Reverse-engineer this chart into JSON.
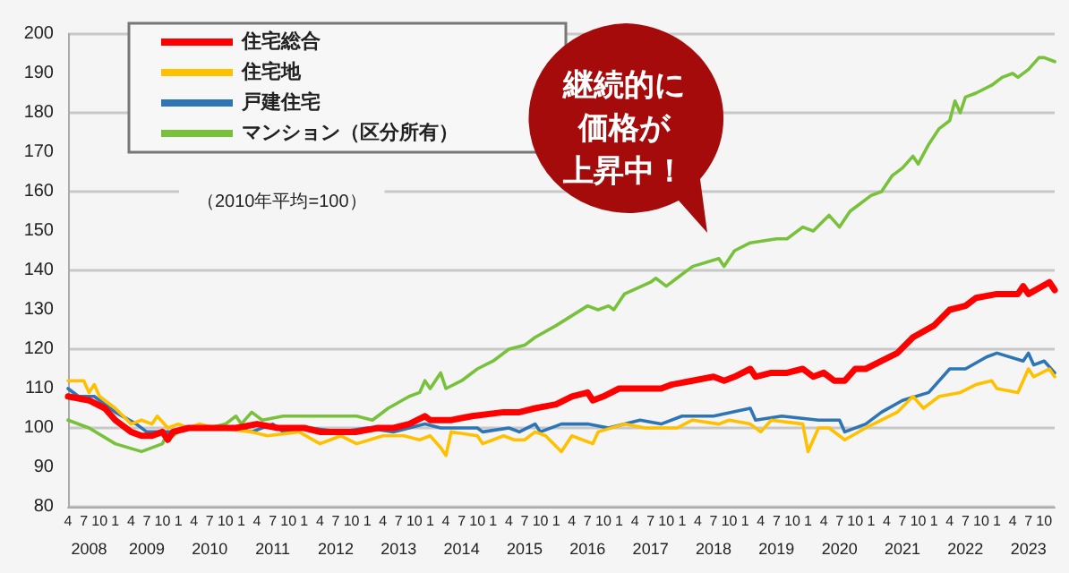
{
  "chart_data": {
    "type": "line",
    "subtitle": "（2010年平均=100）",
    "annotations": [
      "継続的に",
      "価格が",
      "上昇中！"
    ],
    "xlim": [
      "2008-04",
      "2023-12"
    ],
    "ylim": [
      80,
      200
    ],
    "yticks": [
      80,
      90,
      100,
      110,
      120,
      130,
      140,
      150,
      160,
      170,
      180,
      190,
      200
    ],
    "xticks": [
      {
        "value": "2008-04",
        "label": "4"
      },
      {
        "value": "2008-07",
        "label": "7"
      },
      {
        "value": "2008-10",
        "label": "10"
      },
      {
        "value": "2009-01",
        "label": "1"
      },
      {
        "value": "2009-04",
        "label": "4"
      },
      {
        "value": "2009-07",
        "label": "7"
      },
      {
        "value": "2009-10",
        "label": "10"
      },
      {
        "value": "2010-01",
        "label": "1"
      },
      {
        "value": "2010-04",
        "label": "4"
      },
      {
        "value": "2010-07",
        "label": "7"
      },
      {
        "value": "2010-10",
        "label": "10"
      },
      {
        "value": "2011-01",
        "label": "1"
      },
      {
        "value": "2011-04",
        "label": "4"
      },
      {
        "value": "2011-07",
        "label": "7"
      },
      {
        "value": "2011-10",
        "label": "10"
      },
      {
        "value": "2012-01",
        "label": "1"
      },
      {
        "value": "2012-04",
        "label": "4"
      },
      {
        "value": "2012-07",
        "label": "7"
      },
      {
        "value": "2012-10",
        "label": "10"
      },
      {
        "value": "2013-01",
        "label": "1"
      },
      {
        "value": "2013-04",
        "label": "4"
      },
      {
        "value": "2013-07",
        "label": "7"
      },
      {
        "value": "2013-10",
        "label": "10"
      },
      {
        "value": "2014-01",
        "label": "1"
      },
      {
        "value": "2014-04",
        "label": "4"
      },
      {
        "value": "2014-07",
        "label": "7"
      },
      {
        "value": "2014-10",
        "label": "10"
      },
      {
        "value": "2015-01",
        "label": "1"
      },
      {
        "value": "2015-04",
        "label": "4"
      },
      {
        "value": "2015-07",
        "label": "7"
      },
      {
        "value": "2015-10",
        "label": "10"
      },
      {
        "value": "2016-01",
        "label": "1"
      },
      {
        "value": "2016-04",
        "label": "4"
      },
      {
        "value": "2016-07",
        "label": "7"
      },
      {
        "value": "2016-10",
        "label": "10"
      },
      {
        "value": "2017-01",
        "label": "1"
      },
      {
        "value": "2017-04",
        "label": "4"
      },
      {
        "value": "2017-07",
        "label": "7"
      },
      {
        "value": "2017-10",
        "label": "10"
      },
      {
        "value": "2018-01",
        "label": "1"
      },
      {
        "value": "2018-04",
        "label": "4"
      },
      {
        "value": "2018-07",
        "label": "7"
      },
      {
        "value": "2018-10",
        "label": "10"
      },
      {
        "value": "2019-01",
        "label": "1"
      },
      {
        "value": "2019-04",
        "label": "4"
      },
      {
        "value": "2019-07",
        "label": "7"
      },
      {
        "value": "2019-10",
        "label": "10"
      },
      {
        "value": "2020-01",
        "label": "1"
      },
      {
        "value": "2020-04",
        "label": "4"
      },
      {
        "value": "2020-07",
        "label": "7"
      },
      {
        "value": "2020-10",
        "label": "10"
      },
      {
        "value": "2021-01",
        "label": "1"
      },
      {
        "value": "2021-04",
        "label": "4"
      },
      {
        "value": "2021-07",
        "label": "7"
      },
      {
        "value": "2021-10",
        "label": "10"
      },
      {
        "value": "2022-01",
        "label": "1"
      },
      {
        "value": "2022-04",
        "label": "4"
      },
      {
        "value": "2022-07",
        "label": "7"
      },
      {
        "value": "2022-10",
        "label": "10"
      },
      {
        "value": "2023-01",
        "label": "1"
      },
      {
        "value": "2023-04",
        "label": "4"
      },
      {
        "value": "2023-07",
        "label": "7"
      },
      {
        "value": "2023-10",
        "label": "10"
      }
    ],
    "x2lim": [
      "2008-04",
      "2023-12"
    ],
    "x2ticks": [
      {
        "value": "2008-08",
        "label": "2008"
      },
      {
        "value": "2009-07",
        "label": "2009"
      },
      {
        "value": "2010-07",
        "label": "2010"
      },
      {
        "value": "2011-07",
        "label": "2011"
      },
      {
        "value": "2012-07",
        "label": "2012"
      },
      {
        "value": "2013-07",
        "label": "2013"
      },
      {
        "value": "2014-07",
        "label": "2014"
      },
      {
        "value": "2015-07",
        "label": "2015"
      },
      {
        "value": "2016-07",
        "label": "2016"
      },
      {
        "value": "2017-07",
        "label": "2017"
      },
      {
        "value": "2018-07",
        "label": "2018"
      },
      {
        "value": "2019-07",
        "label": "2019"
      },
      {
        "value": "2020-07",
        "label": "2020"
      },
      {
        "value": "2021-07",
        "label": "2021"
      },
      {
        "value": "2022-07",
        "label": "2022"
      },
      {
        "value": "2023-07",
        "label": "2023"
      }
    ],
    "grid": "y",
    "legend": "top left",
    "marker": "none",
    "line_style": "solid",
    "series": [
      {
        "name": "住宅総合",
        "color": "#ff0000",
        "x": [
          "2008-04",
          "2008-08",
          "2008-11",
          "2009-01",
          "2009-04",
          "2009-06",
          "2009-08",
          "2009-10",
          "2009-11",
          "2009-12",
          "2010-03",
          "2010-08",
          "2010-12",
          "2011-04",
          "2011-08",
          "2012-01",
          "2012-04",
          "2012-08",
          "2012-11",
          "2013-03",
          "2013-06",
          "2013-09",
          "2013-12",
          "2014-01",
          "2014-03",
          "2014-05",
          "2014-09",
          "2015-03",
          "2015-06",
          "2015-09",
          "2016-01",
          "2016-04",
          "2016-07",
          "2016-08",
          "2016-10",
          "2017-01",
          "2017-05",
          "2017-09",
          "2017-11",
          "2018-03",
          "2018-07",
          "2018-09",
          "2018-11",
          "2019-02",
          "2019-03",
          "2019-06",
          "2019-09",
          "2019-12",
          "2020-02",
          "2020-04",
          "2020-06",
          "2020-08",
          "2020-10",
          "2020-12",
          "2021-03",
          "2021-06",
          "2021-09",
          "2022-01",
          "2022-04",
          "2022-07",
          "2022-09",
          "2023-01",
          "2023-05",
          "2023-06",
          "2023-07",
          "2023-11",
          "2023-12"
        ],
        "values": [
          108,
          107,
          105,
          102,
          99,
          98,
          98,
          99,
          97,
          99,
          100,
          100,
          100,
          101,
          100,
          100,
          99,
          99,
          99,
          100,
          100,
          101,
          103,
          102,
          102,
          102,
          103,
          104,
          104,
          105,
          106,
          108,
          109,
          107,
          108,
          110,
          110,
          110,
          111,
          112,
          113,
          112,
          113,
          115,
          113,
          114,
          114,
          115,
          113,
          114,
          112,
          112,
          115,
          115,
          117,
          119,
          123,
          126,
          130,
          131,
          133,
          134,
          134,
          136,
          134,
          137,
          135
        ]
      },
      {
        "name": "住宅地",
        "color": "#ffc000",
        "x": [
          "2008-04",
          "2008-07",
          "2008-08",
          "2008-09",
          "2008-10",
          "2009-01",
          "2009-04",
          "2009-06",
          "2009-08",
          "2009-09",
          "2009-11",
          "2010-01",
          "2010-03",
          "2010-05",
          "2010-08",
          "2011-03",
          "2011-06",
          "2011-12",
          "2012-04",
          "2012-08",
          "2012-11",
          "2013-04",
          "2013-08",
          "2013-11",
          "2014-01",
          "2014-03",
          "2014-04",
          "2014-05",
          "2014-10",
          "2014-11",
          "2015-03",
          "2015-05",
          "2015-07",
          "2015-09",
          "2015-11",
          "2016-02",
          "2016-04",
          "2016-08",
          "2016-09",
          "2017-02",
          "2017-06",
          "2017-12",
          "2018-03",
          "2018-08",
          "2018-10",
          "2019-02",
          "2019-04",
          "2019-06",
          "2019-12",
          "2020-01",
          "2020-03",
          "2020-05",
          "2020-08",
          "2020-12",
          "2021-03",
          "2021-06",
          "2021-09",
          "2021-11",
          "2022-02",
          "2022-06",
          "2022-09",
          "2022-12",
          "2023-01",
          "2023-05",
          "2023-07",
          "2023-08",
          "2023-11",
          "2023-12"
        ],
        "values": [
          112,
          112,
          109,
          111,
          108,
          105,
          101,
          102,
          101,
          103,
          100,
          101,
          100,
          101,
          100,
          99,
          98,
          99,
          96,
          98,
          96,
          98,
          98,
          97,
          98,
          95,
          93,
          99,
          98,
          96,
          98,
          97,
          97,
          99,
          98,
          94,
          98,
          96,
          99,
          101,
          100,
          100,
          102,
          101,
          102,
          101,
          99,
          102,
          101,
          94,
          100,
          100,
          97,
          100,
          102,
          104,
          108,
          105,
          108,
          109,
          111,
          112,
          110,
          109,
          115,
          113,
          115,
          113
        ]
      },
      {
        "name": "戸建住宅",
        "color": "#2e75b6",
        "x": [
          "2008-04",
          "2008-06",
          "2008-09",
          "2009-01",
          "2009-05",
          "2009-07",
          "2009-10",
          "2009-12",
          "2010-03",
          "2010-12",
          "2011-03",
          "2011-07",
          "2011-09",
          "2012-02",
          "2012-08",
          "2013-01",
          "2013-06",
          "2013-09",
          "2013-12",
          "2014-03",
          "2014-10",
          "2014-11",
          "2015-04",
          "2015-06",
          "2015-09",
          "2015-10",
          "2016-02",
          "2016-07",
          "2016-11",
          "2017-05",
          "2017-09",
          "2018-01",
          "2018-07",
          "2019-02",
          "2019-03",
          "2019-08",
          "2020-03",
          "2020-07",
          "2020-08",
          "2020-12",
          "2021-03",
          "2021-07",
          "2021-12",
          "2022-04",
          "2022-07",
          "2022-11",
          "2023-01",
          "2023-06",
          "2023-07",
          "2023-08",
          "2023-10",
          "2023-12"
        ],
        "values": [
          110,
          108,
          108,
          104,
          101,
          99,
          99,
          99,
          100,
          100,
          99,
          101,
          99,
          100,
          99,
          100,
          99,
          100,
          101,
          100,
          100,
          99,
          100,
          99,
          101,
          99,
          101,
          101,
          100,
          102,
          101,
          103,
          103,
          105,
          102,
          103,
          102,
          102,
          99,
          101,
          104,
          107,
          109,
          115,
          115,
          118,
          119,
          117,
          119,
          116,
          117,
          114
        ]
      },
      {
        "name": "マンション（区分所有）",
        "color": "#77c13b",
        "x": [
          "2008-04",
          "2008-08",
          "2009-01",
          "2009-06",
          "2009-10",
          "2009-11",
          "2009-12",
          "2010-02",
          "2010-07",
          "2010-10",
          "2010-12",
          "2011-01",
          "2011-03",
          "2011-05",
          "2011-09",
          "2012-02",
          "2012-07",
          "2012-11",
          "2013-02",
          "2013-05",
          "2013-09",
          "2013-11",
          "2013-12",
          "2014-01",
          "2014-03",
          "2014-04",
          "2014-07",
          "2014-10",
          "2015-01",
          "2015-04",
          "2015-07",
          "2015-09",
          "2016-01",
          "2016-07",
          "2016-09",
          "2016-11",
          "2016-12",
          "2017-02",
          "2017-07",
          "2017-08",
          "2017-10",
          "2017-12",
          "2018-03",
          "2018-08",
          "2018-09",
          "2018-11",
          "2019-02",
          "2019-07",
          "2019-09",
          "2019-12",
          "2020-02",
          "2020-05",
          "2020-07",
          "2020-09",
          "2020-11",
          "2021-01",
          "2021-03",
          "2021-05",
          "2021-07",
          "2021-09",
          "2021-10",
          "2021-12",
          "2022-02",
          "2022-04",
          "2022-05",
          "2022-06",
          "2022-07",
          "2022-09",
          "2022-12",
          "2023-02",
          "2023-04",
          "2023-05",
          "2023-07",
          "2023-09",
          "2023-10",
          "2023-12"
        ],
        "values": [
          102,
          100,
          96,
          94,
          96,
          99,
          98,
          100,
          100,
          101,
          103,
          101,
          104,
          102,
          103,
          103,
          103,
          103,
          102,
          105,
          108,
          109,
          112,
          110,
          114,
          110,
          112,
          115,
          117,
          120,
          121,
          123,
          126,
          131,
          130,
          131,
          130,
          134,
          137,
          138,
          136,
          138,
          141,
          143,
          141,
          145,
          147,
          148,
          148,
          151,
          150,
          154,
          151,
          155,
          157,
          159,
          160,
          164,
          166,
          169,
          167,
          172,
          176,
          178,
          183,
          180,
          184,
          185,
          187,
          189,
          190,
          189,
          191,
          194,
          194,
          193
        ]
      }
    ]
  }
}
